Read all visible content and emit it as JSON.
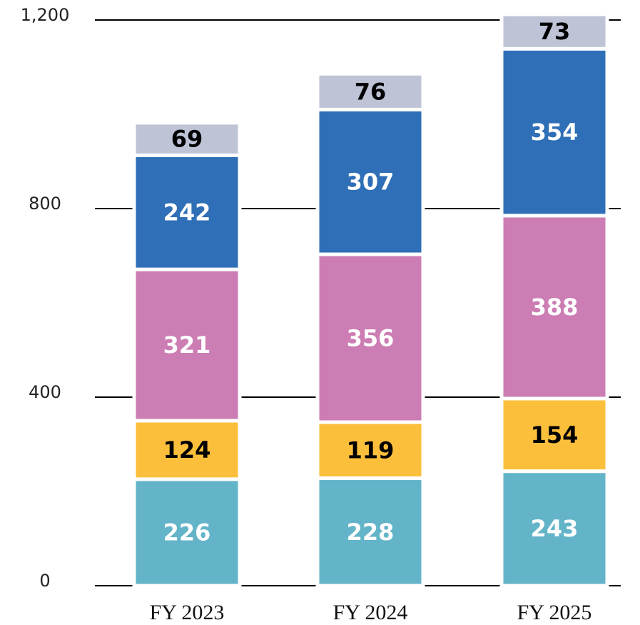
{
  "chart_data": {
    "type": "stacked_bar",
    "categories": [
      "FY 2023",
      "FY 2024",
      "FY 2025"
    ],
    "series": [
      {
        "color": "#63b4c8",
        "label_color": "#ffffff",
        "values": [
          226,
          228,
          243
        ]
      },
      {
        "color": "#fbbf3c",
        "label_color": "#000000",
        "values": [
          124,
          119,
          154
        ]
      },
      {
        "color": "#cc7db3",
        "label_color": "#ffffff",
        "values": [
          321,
          356,
          388
        ]
      },
      {
        "color": "#2f6fb7",
        "label_color": "#ffffff",
        "values": [
          242,
          307,
          354
        ]
      },
      {
        "color": "#bec3d6",
        "label_color": "#000000",
        "values": [
          69,
          76,
          73
        ]
      }
    ],
    "ylim": [
      0,
      1200
    ],
    "yticks": [
      0,
      400,
      800,
      {
        "value": 1200,
        "label": "1,200"
      }
    ],
    "grid": true
  }
}
